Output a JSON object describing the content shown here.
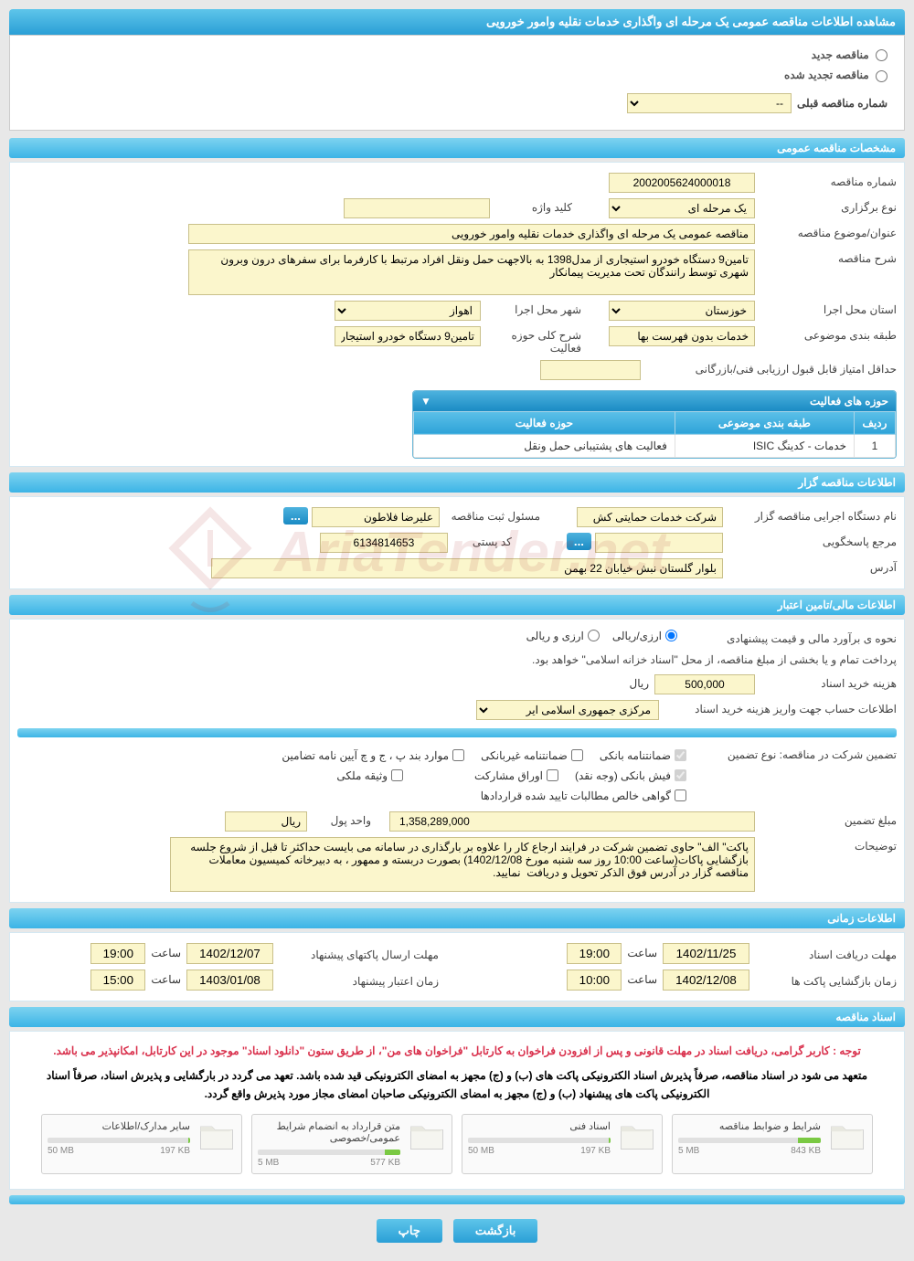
{
  "page_title": "مشاهده اطلاعات مناقصه عمومی یک مرحله ای واگذاری خدمات نقلیه وامور خورویی",
  "tender_type_radio": {
    "new": "مناقصه جدید",
    "renewed": "مناقصه تجدید شده"
  },
  "prev_number": {
    "label": "شماره مناقصه قبلی",
    "value": "--"
  },
  "sections": {
    "general": "مشخصات مناقصه عمومی",
    "tenderer": "اطلاعات مناقصه گزار",
    "financial": "اطلاعات مالی/تامین اعتبار",
    "timing": "اطلاعات زمانی",
    "documents": "اسناد مناقصه"
  },
  "general": {
    "number_label": "شماره مناقصه",
    "number": "2002005624000018",
    "type_label": "نوع برگزاری",
    "type": "یک مرحله ای",
    "keyword_label": "کلید واژه",
    "keyword": "",
    "subject_label": "عنوان/موضوع مناقصه",
    "subject": "مناقصه عمومی یک مرحله ای واگذاری خدمات نقلیه وامور خورویی",
    "desc_label": "شرح مناقصه",
    "desc": "تامین9 دستگاه خودرو استیجاری از مدل1398 به بالاجهت حمل ونقل افراد مرتبط با کارفرما برای سفرهای درون وبرون شهری توسط رانندگان تحت مدیریت پیمانکار",
    "province_label": "استان محل اجرا",
    "province": "خوزستان",
    "city_label": "شهر محل اجرا",
    "city": "اهواز",
    "category_label": "طبقه بندی موضوعی",
    "category": "خدمات بدون فهرست بها",
    "scope_label": "شرح کلی حوزه فعالیت",
    "scope": "تامین9 دستگاه خودرو استیجاری از مدل1398 به",
    "min_score_label": "حداقل امتیاز قابل قبول ارزیابی فنی/بازرگانی",
    "min_score": ""
  },
  "activity_panel": {
    "title": "حوزه های فعالیت",
    "col_row": "ردیف",
    "col_cat": "طبقه بندی موضوعی",
    "col_scope": "حوزه فعالیت",
    "rows": [
      {
        "n": "1",
        "cat": "خدمات - کدینگ ISIC",
        "scope": "فعالیت های پشتیبانی حمل ونقل"
      }
    ]
  },
  "tenderer": {
    "org_label": "نام دستگاه اجرایی مناقصه گزار",
    "org": "شرکت خدمات حمایتی کش",
    "resp_label": "مسئول ثبت مناقصه",
    "resp": "علیرضا فلاطون",
    "ellipsis": "...",
    "answer_label": "مرجع پاسخگویی",
    "answer": "",
    "postal_label": "کد پستی",
    "postal": "6134814653",
    "address_label": "آدرس",
    "address": "بلوار گلستان نبش خیابان 22 بهمن"
  },
  "financial": {
    "estimate_label": "نحوه ی برآورد مالی و قیمت پیشنهادی",
    "radio_rial": "ارزی/ریالی",
    "radio_arz": "ارزی و ریالی",
    "treasury_note": "پرداخت تمام و یا بخشی از مبلغ مناقصه، از محل \"اسناد خزانه اسلامی\" خواهد بود.",
    "fee_label": "هزینه خرید اسناد",
    "fee": "500,000",
    "fee_unit": "ریال",
    "account_label": "اطلاعات حساب جهت واریز هزینه خرید اسناد",
    "account": "مرکزی جمهوری اسلامی ایر",
    "guarantee_type_label": "تضمین شرکت در مناقصه:    نوع تضمین",
    "cb_bank": "ضمانتنامه بانکی",
    "cb_nonbank": "ضمانتنامه غیربانکی",
    "cb_clauses": "موارد بند پ ، ج و چ آیین نامه تضامین",
    "cb_cash": "فیش بانکی (وجه نقد)",
    "cb_bonds": "اوراق مشارکت",
    "cb_property": "وثیقه ملکی",
    "cb_receivables": "گواهی خالص مطالبات تایید شده قراردادها",
    "amount_label": "مبلغ تضمین",
    "amount": "1,358,289,000",
    "unit_label": "واحد پول",
    "unit": "ریال",
    "notes_label": "توضیحات",
    "notes": "پاکت\" الف\" حاوی تضمین شرکت در فرایند ارجاع کار را علاوه بر بارگذاری در سامانه می بایست حداکثر تا قبل از شروع جلسه بازگشایی پاکات(ساعت 10:00 روز سه شنبه مورخ 1402/12/08) بصورت دربسته و ممهور ، به دبیرخانه کمیسیون معاملات مناقصه گزار در آدرس فوق الذکر تحویل و دریافت  نمایید."
  },
  "timing": {
    "receive_label": "مهلت دریافت اسناد",
    "receive_date": "1402/11/25",
    "receive_time": "19:00",
    "submit_label": "مهلت ارسال پاکتهای پیشنهاد",
    "submit_date": "1402/12/07",
    "submit_time": "19:00",
    "open_label": "زمان بازگشایی پاکت ها",
    "open_date": "1402/12/08",
    "open_time": "10:00",
    "valid_label": "زمان اعتبار پیشنهاد",
    "valid_date": "1403/01/08",
    "valid_time": "15:00",
    "hour_label": "ساعت"
  },
  "docs_notices": {
    "red": "توجه : کاربر گرامی، دریافت اسناد در مهلت قانونی و پس از افزودن فراخوان به کارتابل \"فراخوان های من\"، از طریق ستون \"دانلود اسناد\" موجود در این کارتابل، امکانپذیر می باشد.",
    "black": "متعهد می شود در اسناد مناقصه، صرفاً پذیرش اسناد الکترونیکی پاکت های (ب) و (ج) مجهز به امضای الکترونیکی قید شده باشد. تعهد می گردد در بارگشایی و پذیرش اسناد، صرفاً اسناد الکترونیکی پاکت های پیشنهاد (ب) و (ج) مجهز به امضای الکترونیکی صاحبان امضای مجاز مورد پذیرش واقع گردد."
  },
  "documents": [
    {
      "title": "شرایط و ضوابط مناقصه",
      "used": "843 KB",
      "max": "5 MB",
      "pct": 16
    },
    {
      "title": "اسناد فنی",
      "used": "197 KB",
      "max": "50 MB",
      "pct": 1
    },
    {
      "title": "متن قرارداد به انضمام شرایط عمومی/خصوصی",
      "used": "577 KB",
      "max": "5 MB",
      "pct": 11
    },
    {
      "title": "سایر مدارک/اطلاعات",
      "used": "197 KB",
      "max": "50 MB",
      "pct": 1
    }
  ],
  "footer": {
    "back": "بازگشت",
    "print": "چاپ"
  },
  "colors": {
    "header_grad_top": "#5ec5ea",
    "header_grad_bottom": "#2a9fd6",
    "section_grad_top": "#7dd3f0",
    "section_grad_bottom": "#3cb4e6",
    "input_bg": "#fbf6cc",
    "input_border": "#c9c08a",
    "page_bg": "#e8e8e8",
    "progress_fill": "#7ac943",
    "red_text": "#d9304c"
  }
}
